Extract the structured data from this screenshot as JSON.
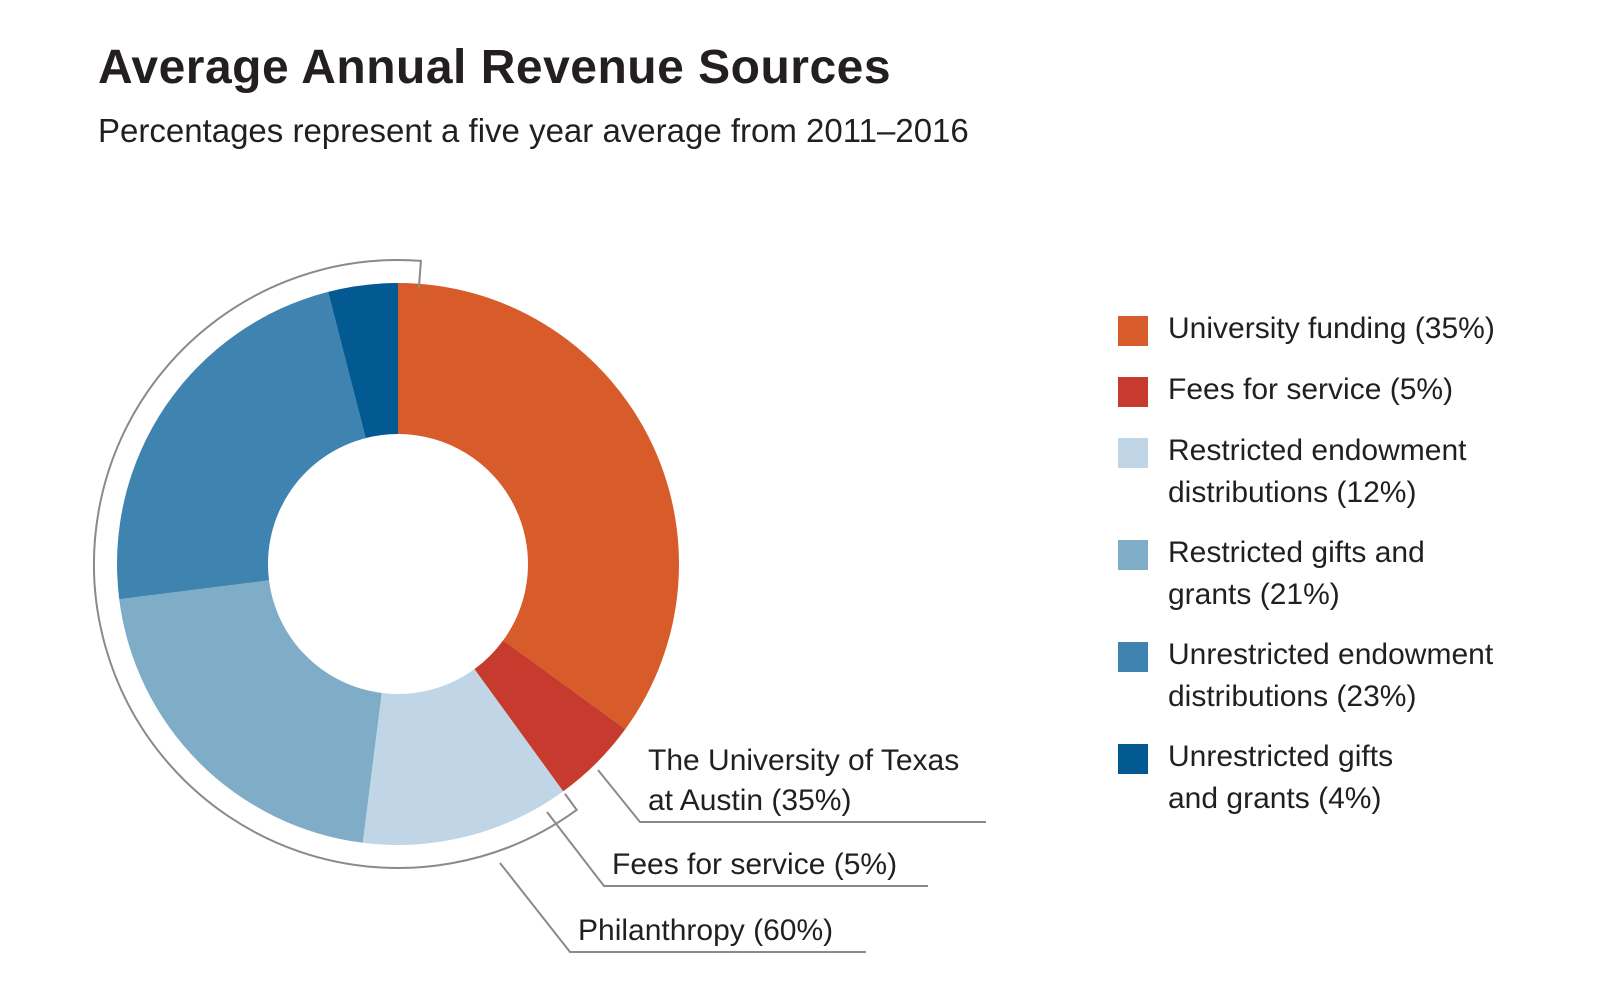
{
  "chart_data": {
    "type": "pie",
    "title": "Average Annual Revenue Sources",
    "subtitle": "Percentages represent a five year average from 2011–2016",
    "slices": [
      {
        "label": "University funding (35%)",
        "value": 35,
        "color": "#d85b2a"
      },
      {
        "label": "Fees for service (5%)",
        "value": 5,
        "color": "#c73a2e"
      },
      {
        "label": "Restricted endowment distributions (12%)",
        "value": 12,
        "color": "#c0d6e6"
      },
      {
        "label": "Restricted gifts and grants (21%)",
        "value": 21,
        "color": "#7fadc8"
      },
      {
        "label": "Unrestricted endowment distributions (23%)",
        "value": 23,
        "color": "#3f84b0"
      },
      {
        "label": "Unrestricted gifts and grants (4%)",
        "value": 4,
        "color": "#035a92"
      }
    ],
    "legend": [
      {
        "lines": [
          "University funding (35%)"
        ],
        "color": "#d85b2a"
      },
      {
        "lines": [
          "Fees for service (5%)"
        ],
        "color": "#c73a2e"
      },
      {
        "lines": [
          "Restricted endowment",
          "distributions (12%)"
        ],
        "color": "#c0d6e6"
      },
      {
        "lines": [
          "Restricted gifts and",
          "grants (21%)"
        ],
        "color": "#7fadc8"
      },
      {
        "lines": [
          "Unrestricted endowment",
          "distributions (23%)"
        ],
        "color": "#3f84b0"
      },
      {
        "lines": [
          "Unrestricted gifts",
          "and grants (4%)"
        ],
        "color": "#035a92"
      }
    ],
    "legend_position": "right",
    "annotations": [
      {
        "lines": [
          "The University of Texas",
          "at Austin (35%)"
        ]
      },
      {
        "lines": [
          "Fees for service (5%)"
        ]
      },
      {
        "lines": [
          "Philanthropy (60%)"
        ]
      }
    ],
    "group_bracket": {
      "label": "Philanthropy (60%)",
      "value": 60
    }
  }
}
